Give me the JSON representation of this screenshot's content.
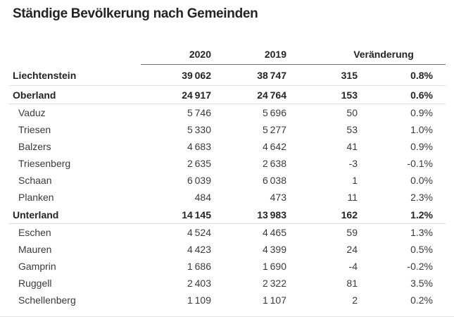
{
  "title": "Ständige Bevölkerung nach Gemeinden",
  "colors": {
    "accent_underline": "#cfe2ee",
    "header_rule": "#6e6e6e",
    "text": "#3a3a3a",
    "text_strong": "#242424"
  },
  "table": {
    "headers": {
      "col2020": "2020",
      "col2019": "2019",
      "change": "Veränderung"
    },
    "rows": [
      {
        "type": "total",
        "name": "Liechtenstein",
        "y2020": "39 062",
        "y2019": "38 747",
        "change": "315",
        "pct": "0.8%"
      },
      {
        "type": "region",
        "name": "Oberland",
        "y2020": "24 917",
        "y2019": "24 764",
        "change": "153",
        "pct": "0.6%"
      },
      {
        "type": "municipality",
        "name": "Vaduz",
        "y2020": "5 746",
        "y2019": "5 696",
        "change": "50",
        "pct": "0.9%"
      },
      {
        "type": "municipality",
        "name": "Triesen",
        "y2020": "5 330",
        "y2019": "5 277",
        "change": "53",
        "pct": "1.0%"
      },
      {
        "type": "municipality",
        "name": "Balzers",
        "y2020": "4 683",
        "y2019": "4 642",
        "change": "41",
        "pct": "0.9%"
      },
      {
        "type": "municipality",
        "name": "Triesenberg",
        "y2020": "2 635",
        "y2019": "2 638",
        "change": "-3",
        "pct": "-0.1%"
      },
      {
        "type": "municipality",
        "name": "Schaan",
        "y2020": "6 039",
        "y2019": "6 038",
        "change": "1",
        "pct": "0.0%"
      },
      {
        "type": "municipality",
        "name": "Planken",
        "y2020": "484",
        "y2019": "473",
        "change": "11",
        "pct": "2.3%"
      },
      {
        "type": "region",
        "name": "Unterland",
        "y2020": "14 145",
        "y2019": "13 983",
        "change": "162",
        "pct": "1.2%"
      },
      {
        "type": "municipality",
        "name": "Eschen",
        "y2020": "4 524",
        "y2019": "4 465",
        "change": "59",
        "pct": "1.3%"
      },
      {
        "type": "municipality",
        "name": "Mauren",
        "y2020": "4 423",
        "y2019": "4 399",
        "change": "24",
        "pct": "0.5%"
      },
      {
        "type": "municipality",
        "name": "Gamprin",
        "y2020": "1 686",
        "y2019": "1 690",
        "change": "-4",
        "pct": "-0.2%"
      },
      {
        "type": "municipality",
        "name": "Ruggell",
        "y2020": "2 403",
        "y2019": "2 322",
        "change": "81",
        "pct": "3.5%"
      },
      {
        "type": "municipality",
        "name": "Schellenberg",
        "y2020": "1 109",
        "y2019": "1 107",
        "change": "2",
        "pct": "0.2%"
      }
    ]
  }
}
